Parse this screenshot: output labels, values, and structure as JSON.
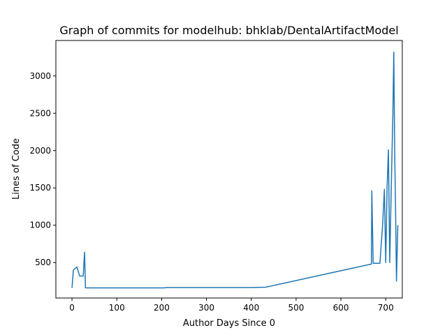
{
  "chart_data": {
    "type": "line",
    "title": "Graph of commits for modelhub: bhklab/DentalArtifactModel",
    "xlabel": "Author Days Since 0",
    "ylabel": "Lines of Code",
    "xlim": [
      -36,
      737
    ],
    "ylim": [
      25,
      3475
    ],
    "xticks": [
      0,
      100,
      200,
      300,
      400,
      500,
      600,
      700
    ],
    "yticks": [
      500,
      1000,
      1500,
      2000,
      2500,
      3000
    ],
    "grid": false,
    "series": [
      {
        "color": "#1f77b4",
        "x": [
          0,
          3,
          11,
          17,
          25,
          28,
          30,
          205,
          210,
          400,
          432,
          668,
          669,
          672,
          680,
          687,
          693,
          697,
          700,
          703,
          706,
          709,
          712,
          716,
          718,
          720,
          722,
          724,
          727
        ],
        "y": [
          160,
          400,
          440,
          320,
          320,
          640,
          160,
          160,
          165,
          165,
          170,
          480,
          1460,
          490,
          490,
          490,
          1000,
          1480,
          500,
          1500,
          2010,
          500,
          1400,
          2500,
          3320,
          2000,
          1200,
          250,
          1000
        ]
      }
    ]
  }
}
